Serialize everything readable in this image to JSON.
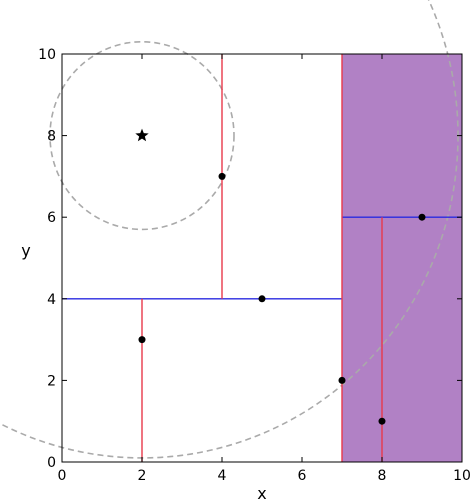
{
  "chart_data": {
    "type": "scatter",
    "title": "",
    "xlabel": "x",
    "ylabel": "y",
    "xlim": [
      0,
      10
    ],
    "ylim": [
      0,
      10
    ],
    "xticks": [
      "0",
      "2",
      "4",
      "6",
      "8",
      "10"
    ],
    "yticks": [
      "0",
      "2",
      "4",
      "6",
      "8",
      "10"
    ],
    "grid": false,
    "points": [
      {
        "x": 2,
        "y": 3
      },
      {
        "x": 4,
        "y": 7
      },
      {
        "x": 5,
        "y": 4
      },
      {
        "x": 7,
        "y": 2
      },
      {
        "x": 8,
        "y": 1
      },
      {
        "x": 9,
        "y": 6
      }
    ],
    "query_point": {
      "x": 2,
      "y": 8,
      "marker": "star"
    },
    "vertical_splits": [
      {
        "x": 2,
        "y0": 0,
        "y1": 4
      },
      {
        "x": 4,
        "y0": 4,
        "y1": 10
      },
      {
        "x": 7,
        "y0": 0,
        "y1": 10
      },
      {
        "x": 8,
        "y0": 0,
        "y1": 6
      }
    ],
    "horizontal_splits": [
      {
        "y": 4,
        "x0": 0,
        "x1": 7
      },
      {
        "y": 6,
        "x0": 7,
        "x1": 10
      }
    ],
    "shaded_region": {
      "x0": 7,
      "x1": 10,
      "y0": 0,
      "y1": 10
    },
    "circles": [
      {
        "cx": 2,
        "cy": 8,
        "r": 2.3
      },
      {
        "cx": 2,
        "cy": 8,
        "r": 7.9
      }
    ],
    "colors": {
      "vertical_split": "#e8394b",
      "horizontal_split": "#2a2ae0",
      "shade": "#9b5db5",
      "circle": "#aaaaaa",
      "point": "#000000"
    }
  }
}
